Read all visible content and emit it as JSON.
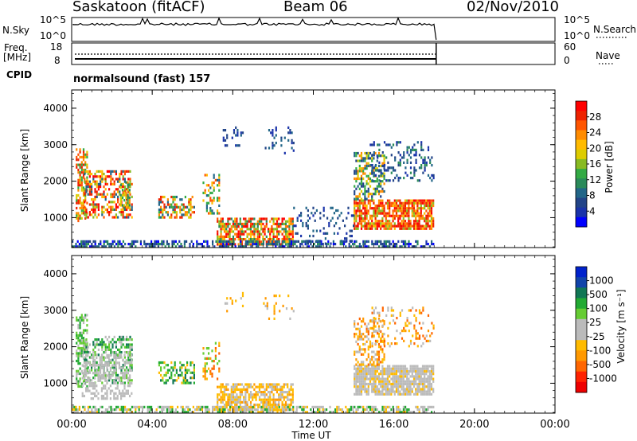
{
  "header": {
    "station": "Saskatoon (fitACF)",
    "beam": "Beam 06",
    "date": "02/Nov/2010"
  },
  "nsky_panel": {
    "left_label": "N.Sky",
    "left_ticks": [
      "10^5",
      "10^0"
    ],
    "right_ticks": [
      "10^5",
      "10^0"
    ],
    "right_label": "N.Search"
  },
  "freq_panel": {
    "left_label_1": "Freq.",
    "left_label_2": "[MHz]",
    "left_ticks": [
      "18",
      "8"
    ],
    "right_ticks": [
      "60",
      "0"
    ],
    "right_label": "Nave"
  },
  "cpid": {
    "label": "CPID",
    "value": "normalsound (fast) 157"
  },
  "chart_data": [
    {
      "type": "heatmap",
      "panel": "power",
      "ylabel": "Slant Range [km]",
      "y_ticks": [
        "4000",
        "3000",
        "2000",
        "1000"
      ],
      "y_tick_values": [
        4000,
        3000,
        2000,
        1000
      ],
      "ylim": [
        180,
        4500
      ],
      "xlim_hours": [
        0,
        24
      ],
      "colorbar_label": "Power [dB]",
      "colorbar_ticks": [
        "28",
        "24",
        "20",
        "16",
        "12",
        "8",
        "4"
      ],
      "colorbar_colors": [
        "#ff0000",
        "#ee2200",
        "#ff5500",
        "#ff8c00",
        "#ffbb00",
        "#ddcc00",
        "#88bb22",
        "#33aa44",
        "#2a8a5a",
        "#226688",
        "#224488",
        "#1a33aa",
        "#0000ff"
      ],
      "data_end_hour": 18.1
    },
    {
      "type": "heatmap",
      "panel": "velocity",
      "ylabel": "Slant Range [km]",
      "y_ticks": [
        "4000",
        "3000",
        "2000",
        "1000"
      ],
      "y_tick_values": [
        4000,
        3000,
        2000,
        1000
      ],
      "ylim": [
        180,
        4500
      ],
      "xlim_hours": [
        0,
        24
      ],
      "colorbar_label": "Velocity [m s⁻¹]",
      "colorbar_ticks": [
        "1000",
        "500",
        "100",
        "25",
        "-25",
        "-100",
        "-500",
        "-1000"
      ],
      "colorbar_colors": [
        "#0022cc",
        "#1144aa",
        "#117755",
        "#22aa33",
        "#66cc33",
        "#bbbbbb",
        "#bbbbbb",
        "#ffbb00",
        "#ff9900",
        "#ff6600",
        "#ff2200",
        "#ee0000"
      ],
      "data_end_hour": 18.1
    }
  ],
  "x_axis": {
    "ticks": [
      "00:00",
      "04:00",
      "08:00",
      "12:00",
      "16:00",
      "20:00",
      "00:00"
    ],
    "label": "Time UT"
  }
}
